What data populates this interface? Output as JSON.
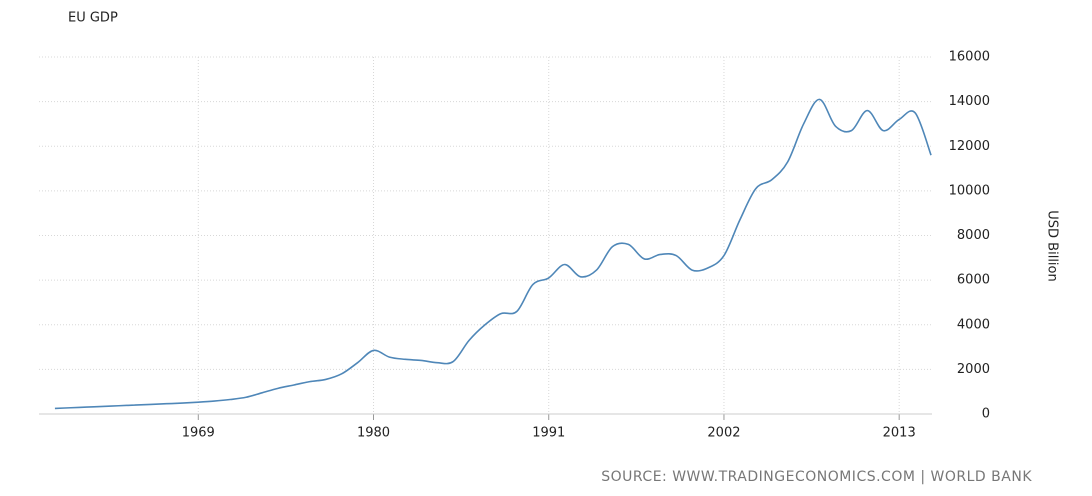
{
  "chart_data": {
    "type": "line",
    "title": "EU GDP",
    "y_axis_label": "USD Billion",
    "source": "SOURCE: WWW.TRADINGECONOMICS.COM | WORLD BANK",
    "x": [
      1960,
      1961,
      1962,
      1963,
      1964,
      1965,
      1966,
      1967,
      1968,
      1969,
      1970,
      1971,
      1972,
      1973,
      1974,
      1975,
      1976,
      1977,
      1978,
      1979,
      1980,
      1981,
      1982,
      1983,
      1984,
      1985,
      1986,
      1987,
      1988,
      1989,
      1990,
      1991,
      1992,
      1993,
      1994,
      1995,
      1996,
      1997,
      1998,
      1999,
      2000,
      2001,
      2002,
      2003,
      2004,
      2005,
      2006,
      2007,
      2008,
      2009,
      2010,
      2011,
      2012,
      2013,
      2014,
      2015
    ],
    "series": [
      {
        "name": "EU GDP",
        "color": "#4f87b8",
        "values": [
          250,
          280,
          310,
          340,
          370,
          400,
          430,
          460,
          490,
          530,
          580,
          650,
          750,
          950,
          1150,
          1300,
          1450,
          1550,
          1800,
          2300,
          2850,
          2550,
          2450,
          2400,
          2300,
          2350,
          3300,
          4000,
          4500,
          4600,
          5800,
          6100,
          6700,
          6150,
          6450,
          7500,
          7600,
          6950,
          7150,
          7100,
          6450,
          6550,
          7100,
          8700,
          10100,
          10500,
          11300,
          13000,
          14100,
          12900,
          12700,
          13600,
          12700,
          13200,
          13500,
          11600
        ]
      }
    ],
    "xlim": [
      1959,
      2015.5
    ],
    "xticks": [
      1969,
      1980,
      1991,
      2002,
      2013
    ],
    "ylim": [
      0,
      16000
    ],
    "yticks": [
      0,
      2000,
      4000,
      6000,
      8000,
      10000,
      12000,
      14000,
      16000
    ],
    "grid": true
  }
}
